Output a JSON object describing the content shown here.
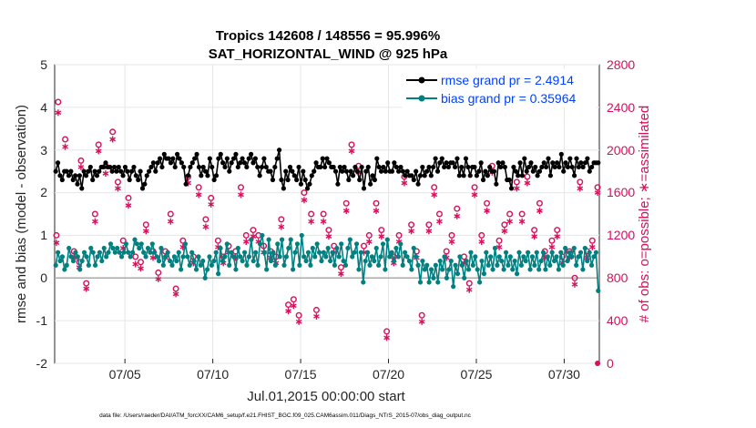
{
  "chart_data": {
    "type": "line",
    "title": "Tropics 142608 / 148556 = 95.996%",
    "subtitle": "SAT_HORIZONTAL_WIND @ 925 hPa",
    "xlabel": "Jul.01,2015 00:00:00 start",
    "ylabel": "rmse and bias (model - observation)",
    "ylabel_right": "# of obs: o=possible; ∗=assimilated",
    "x_ticks": [
      "07/05",
      "07/10",
      "07/15",
      "07/20",
      "07/25",
      "07/30"
    ],
    "x_tick_days": [
      5,
      10,
      15,
      20,
      25,
      30
    ],
    "xlim": [
      1,
      32
    ],
    "y_ticks": [
      "5",
      "4",
      "3",
      "2",
      "1",
      "0",
      "-1",
      "-2"
    ],
    "ylim": [
      -2,
      5
    ],
    "y_right_ticks": [
      "2800",
      "2400",
      "2000",
      "1600",
      "1200",
      "800",
      "400",
      "0"
    ],
    "ylim_right": [
      0,
      2800
    ],
    "footnote": "data file: /Users/raeder/DAI/ATM_forcXX/CAM6_setup/f.e21.FHIST_BGC.f09_025.CAM6assim.011/Diags_NTrS_2015-07/obs_diag_output.nc",
    "colors": {
      "rmse": "#000000",
      "bias": "#008080",
      "obs": "#d6105a",
      "zero": "#aaaaaa",
      "legend_text": "#0040ff"
    },
    "series": [
      {
        "name": "rmse grand pr = 2.4914",
        "values": [
          2.5,
          2.7,
          2.4,
          2.3,
          2.5,
          2.5,
          2.4,
          2.5,
          2.3,
          2.4,
          2.2,
          2.4,
          2.1,
          2.5,
          2.4,
          2.5,
          2.6,
          2.3,
          2.5,
          2.4,
          2.5,
          2.6,
          2.6,
          2.7,
          2.6,
          2.6,
          2.5,
          2.6,
          2.5,
          2.6,
          2.5,
          2.4,
          2.6,
          2.5,
          2.3,
          2.5,
          2.6,
          2.4,
          2.3,
          2.5,
          2.1,
          2.2,
          2.4,
          2.5,
          2.6,
          2.7,
          2.5,
          2.7,
          2.8,
          2.6,
          2.9,
          2.8,
          2.8,
          2.7,
          2.8,
          2.6,
          2.9,
          2.8,
          2.7,
          2.6,
          2.2,
          2.4,
          2.6,
          2.7,
          2.8,
          2.9,
          2.6,
          2.4,
          2.6,
          2.5,
          2.4,
          2.8,
          2.6,
          2.3,
          2.4,
          2.8,
          2.9,
          2.7,
          2.6,
          2.8,
          2.5,
          2.7,
          2.8,
          2.9,
          2.6,
          2.7,
          2.8,
          2.7,
          2.6,
          2.8,
          2.9,
          2.7,
          2.8,
          2.6,
          2.4,
          2.6,
          2.8,
          2.6,
          2.5,
          2.5,
          2.3,
          2.6,
          2.8,
          3.0,
          2.3,
          2.1,
          2.5,
          2.3,
          2.6,
          2.5,
          2.4,
          2.3,
          2.6,
          2.2,
          2.5,
          2.3,
          2.1,
          2.2,
          2.4,
          2.5,
          2.7,
          2.6,
          2.6,
          2.8,
          2.6,
          2.8,
          2.7,
          2.6,
          2.6,
          2.5,
          2.2,
          2.6,
          2.5,
          2.6,
          2.5,
          2.3,
          2.5,
          2.4,
          2.6,
          2.5,
          2.3,
          2.6,
          2.1,
          2.5,
          2.6,
          2.2,
          2.4,
          2.3,
          2.8,
          2.6,
          2.5,
          2.6,
          2.5,
          2.7,
          2.5,
          2.5,
          2.7,
          2.6,
          2.5,
          2.6,
          2.5,
          2.4,
          2.5,
          2.4,
          2.4,
          2.3,
          2.5,
          2.2,
          2.4,
          2.6,
          2.4,
          2.5,
          2.6,
          2.4,
          2.6,
          2.8,
          2.5,
          2.7,
          2.8,
          2.6,
          2.7,
          2.6,
          2.7,
          2.7,
          2.6,
          2.8,
          2.4,
          2.6,
          2.4,
          2.8,
          2.6,
          2.4,
          2.6,
          2.6,
          2.4,
          2.5,
          2.7,
          2.3,
          2.5,
          2.4,
          2.6,
          2.5,
          2.5,
          2.2,
          2.7,
          2.6,
          2.7,
          2.6,
          2.3,
          2.3,
          2.1,
          2.6,
          2.5,
          2.4,
          2.7,
          2.4,
          2.8,
          2.5,
          2.6,
          2.7,
          2.5,
          2.6,
          2.4,
          2.5,
          2.6,
          2.7,
          2.6,
          2.8,
          2.4,
          2.7,
          2.6,
          2.7,
          2.6,
          2.9,
          2.5,
          2.7,
          2.6,
          2.8,
          2.6,
          2.4,
          2.8,
          2.6,
          2.7,
          2.6,
          2.7,
          2.8,
          2.5,
          2.6,
          2.7,
          2.7,
          2.7
        ]
      },
      {
        "name": "bias grand pr = 0.35964",
        "values": [
          0.3,
          0.6,
          0.4,
          0.5,
          0.2,
          0.3,
          0.7,
          0.5,
          0.4,
          0.6,
          0.5,
          0.2,
          0.4,
          0.6,
          0.5,
          0.3,
          0.7,
          0.6,
          0.3,
          0.5,
          0.6,
          0.4,
          0.7,
          0.5,
          0.6,
          0.8,
          0.7,
          0.6,
          0.7,
          0.6,
          0.5,
          0.6,
          0.8,
          0.6,
          0.5,
          0.6,
          0.9,
          0.8,
          0.7,
          0.8,
          0.6,
          0.5,
          0.7,
          0.6,
          0.8,
          0.6,
          0.5,
          0.4,
          0.7,
          0.3,
          0.5,
          0.6,
          0.4,
          0.3,
          0.5,
          0.4,
          0.6,
          0.2,
          0.5,
          0.8,
          0.5,
          0.3,
          0.6,
          0.4,
          0.2,
          0.5,
          0.3,
          0.4,
          0.0,
          0.2,
          0.5,
          0.3,
          0.4,
          0.6,
          0.1,
          0.7,
          0.4,
          0.5,
          0.8,
          0.3,
          0.6,
          0.5,
          0.2,
          0.7,
          0.5,
          0.4,
          0.6,
          0.3,
          0.5,
          0.9,
          0.4,
          0.6,
          0.3,
          0.8,
          1.0,
          0.6,
          0.2,
          0.9,
          0.4,
          0.6,
          0.3,
          0.8,
          0.5,
          0.9,
          0.3,
          0.5,
          0.7,
          0.9,
          0.2,
          0.6,
          0.8,
          0.3,
          1.0,
          0.5,
          0.4,
          0.6,
          0.3,
          0.7,
          0.5,
          0.8,
          0.6,
          0.4,
          0.6,
          0.5,
          0.7,
          0.4,
          0.6,
          0.3,
          0.7,
          0.5,
          0.8,
          0.4,
          0.3,
          0.7,
          0.9,
          0.5,
          0.6,
          0.8,
          0.2,
          0.6,
          -0.1,
          0.4,
          0.6,
          0.3,
          0.5,
          0.4,
          0.7,
          0.3,
          0.5,
          0.8,
          0.2,
          0.9,
          0.5,
          0.6,
          0.4,
          0.7,
          0.5,
          0.8,
          0.3,
          0.6,
          0.5,
          0.4,
          0.2,
          0.7,
          0.5,
          0.3,
          -0.1,
          0.4,
          0.2,
          0.3,
          -0.1,
          0.2,
          0.0,
          0.3,
          -0.1,
          0.4,
          0.2,
          0.5,
          0.0,
          0.2,
          0.4,
          -0.2,
          0.3,
          0.1,
          0.5,
          0.3,
          0.0,
          0.4,
          0.2,
          0.6,
          0.3,
          0.5,
          0.2,
          -0.1,
          0.4,
          0.1,
          0.6,
          0.3,
          0.5,
          0.2,
          0.7,
          0.3,
          0.5,
          0.4,
          0.2,
          0.6,
          0.3,
          0.5,
          0.2,
          0.4,
          0.1,
          0.6,
          0.3,
          0.5,
          0.4,
          0.6,
          0.2,
          0.5,
          0.3,
          0.6,
          0.2,
          0.4,
          0.6,
          0.2,
          0.5,
          0.3,
          0.6,
          0.4,
          0.5,
          0.2,
          0.6,
          0.3,
          0.7,
          0.4,
          0.6,
          0.5,
          0.7,
          0.3,
          0.5,
          0.6,
          0.2,
          0.7,
          0.4,
          0.6,
          0.3,
          0.5,
          0.6,
          -0.3
        ]
      }
    ],
    "obs_points": {
      "days": [
        1.1,
        1.2,
        1.6,
        2.1,
        2.4,
        2.5,
        2.8,
        3.3,
        3.5,
        3.9,
        4.3,
        4.6,
        4.9,
        5.2,
        5.6,
        5.9,
        6.2,
        6.6,
        6.9,
        7.3,
        7.6,
        7.9,
        8.3,
        8.6,
        8.9,
        9.2,
        9.6,
        9.9,
        10.3,
        10.6,
        10.9,
        11.3,
        11.6,
        11.9,
        12.3,
        12.6,
        12.9,
        13.3,
        13.6,
        13.9,
        14.3,
        14.6,
        14.9,
        15.2,
        15.6,
        15.9,
        16.3,
        16.6,
        16.9,
        17.3,
        17.6,
        17.9,
        18.3,
        18.6,
        18.9,
        19.3,
        19.6,
        19.9,
        20.3,
        20.6,
        20.9,
        21.3,
        21.6,
        21.9,
        22.3,
        22.6,
        22.9,
        23.3,
        23.6,
        23.9,
        24.3,
        24.6,
        24.9,
        25.3,
        25.6,
        25.9,
        26.3,
        26.6,
        26.9,
        27.3,
        27.6,
        27.9,
        28.3,
        28.6,
        28.9,
        29.3,
        29.6,
        29.9,
        30.3,
        30.6,
        30.9,
        31.3,
        31.6,
        31.9
      ],
      "possible": [
        1200,
        2450,
        2100,
        1050,
        950,
        1900,
        750,
        1400,
        2050,
        1850,
        2170,
        1700,
        1150,
        1550,
        1000,
        950,
        1300,
        1050,
        850,
        1050,
        1400,
        700,
        1150,
        1750,
        1000,
        1650,
        1350,
        1550,
        1150,
        1000,
        1100,
        1050,
        1650,
        1200,
        1250,
        1200,
        1100,
        1050,
        1000,
        1350,
        550,
        600,
        450,
        1600,
        1400,
        500,
        1400,
        1250,
        1100,
        900,
        1500,
        2050,
        1850,
        1100,
        1200,
        1500,
        1250,
        300,
        1000,
        1200,
        1750,
        1300,
        1050,
        450,
        1300,
        1650,
        1400,
        1050,
        1200,
        1450,
        1000,
        750,
        1650,
        1200,
        1500,
        1850,
        1150,
        1300,
        1400,
        1700,
        1400,
        1750,
        1250,
        1500,
        1050,
        1150,
        1250,
        1000,
        1050,
        800,
        1700,
        1050,
        1150,
        1650
      ],
      "assimilated": [
        1130,
        2350,
        2030,
        990,
        900,
        1840,
        700,
        1330,
        1990,
        1780,
        2100,
        1640,
        1080,
        1480,
        930,
        890,
        1240,
        990,
        790,
        990,
        1330,
        650,
        1090,
        1690,
        940,
        1580,
        1280,
        1490,
        1090,
        940,
        1040,
        990,
        1580,
        1140,
        1190,
        1140,
        1040,
        990,
        940,
        1280,
        490,
        540,
        390,
        1530,
        1330,
        440,
        1330,
        1190,
        1040,
        840,
        1430,
        1990,
        1790,
        1040,
        1140,
        1430,
        1190,
        240,
        940,
        1140,
        1690,
        1240,
        990,
        390,
        1240,
        1580,
        1330,
        990,
        1140,
        1380,
        940,
        690,
        1580,
        1140,
        1430,
        1790,
        1090,
        1240,
        1330,
        1640,
        1330,
        1690,
        1190,
        1430,
        990,
        1090,
        1190,
        940,
        990,
        740,
        1640,
        990,
        1090,
        1600
      ]
    }
  }
}
